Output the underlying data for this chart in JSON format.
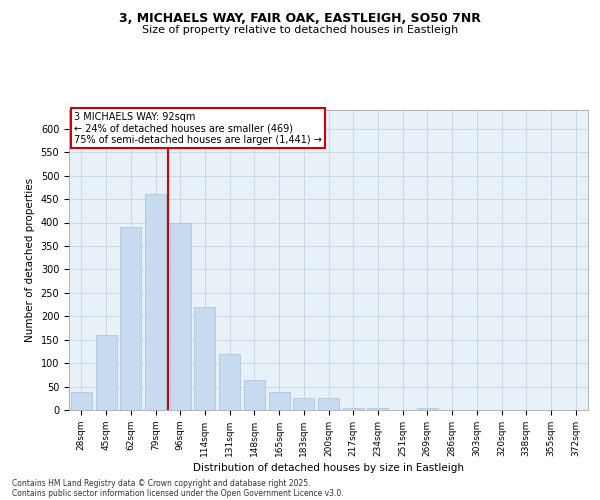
{
  "title_line1": "3, MICHAELS WAY, FAIR OAK, EASTLEIGH, SO50 7NR",
  "title_line2": "Size of property relative to detached houses in Eastleigh",
  "xlabel": "Distribution of detached houses by size in Eastleigh",
  "ylabel": "Number of detached properties",
  "bar_color": "#c8daf0",
  "bar_edge_color": "#a8c0e0",
  "grid_color": "#c8d8ea",
  "bg_color": "#e8f0f8",
  "categories": [
    "28sqm",
    "45sqm",
    "62sqm",
    "79sqm",
    "96sqm",
    "114sqm",
    "131sqm",
    "148sqm",
    "165sqm",
    "183sqm",
    "200sqm",
    "217sqm",
    "234sqm",
    "251sqm",
    "269sqm",
    "286sqm",
    "303sqm",
    "320sqm",
    "338sqm",
    "355sqm",
    "372sqm"
  ],
  "values": [
    38,
    160,
    390,
    460,
    400,
    220,
    120,
    65,
    38,
    25,
    25,
    5,
    5,
    0,
    5,
    0,
    0,
    0,
    0,
    0,
    0
  ],
  "property_line_label": "3 MICHAELS WAY: 92sqm",
  "annotation_line1": "← 24% of detached houses are smaller (469)",
  "annotation_line2": "75% of semi-detached houses are larger (1,441) →",
  "annotation_box_color": "#ffffff",
  "annotation_box_edge_color": "#cc0000",
  "vline_color": "#cc0000",
  "vline_x_index": 3.5,
  "ylim": [
    0,
    640
  ],
  "yticks": [
    0,
    50,
    100,
    150,
    200,
    250,
    300,
    350,
    400,
    450,
    500,
    550,
    600
  ],
  "footnote1": "Contains HM Land Registry data © Crown copyright and database right 2025.",
  "footnote2": "Contains public sector information licensed under the Open Government Licence v3.0."
}
